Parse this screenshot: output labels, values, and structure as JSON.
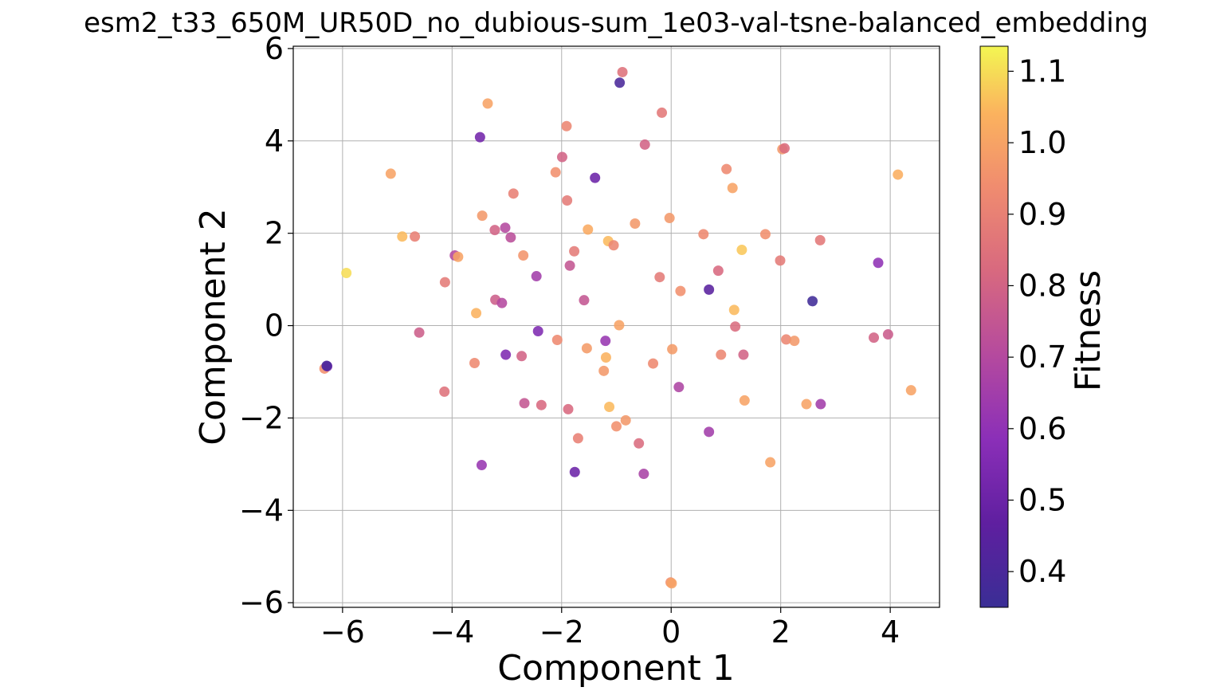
{
  "chart_data": {
    "type": "scatter",
    "title": "esm2_t33_650M_UR50D_no_dubious-sum_1e03-val-tsne-balanced_embedding",
    "xlabel": "Component 1",
    "ylabel": "Component 2",
    "xlim": [
      -6.9,
      4.9
    ],
    "ylim": [
      -6.1,
      6.05
    ],
    "xticks": [
      -6,
      -4,
      -2,
      0,
      2,
      4
    ],
    "yticks": [
      -6,
      -4,
      -2,
      0,
      2,
      4,
      6
    ],
    "xtick_labels": [
      "−6",
      "−4",
      "−2",
      "0",
      "2",
      "4"
    ],
    "ytick_labels": [
      "−6",
      "−4",
      "−2",
      "0",
      "2",
      "4",
      "6"
    ],
    "grid": true,
    "colormap": "plasma",
    "colorbar": {
      "label": "Fitness",
      "range": [
        0.35,
        1.135
      ],
      "ticks": [
        0.4,
        0.5,
        0.6,
        0.7,
        0.8,
        0.9,
        1.0,
        1.1
      ],
      "tick_labels": [
        "0.4",
        "0.5",
        "0.6",
        "0.7",
        "0.8",
        "0.9",
        "1.0",
        "1.1"
      ]
    },
    "points": [
      {
        "x": -0.94,
        "y": 5.26,
        "fitness": 0.4
      },
      {
        "x": -0.89,
        "y": 5.49,
        "fitness": 0.85
      },
      {
        "x": -3.35,
        "y": 4.81,
        "fitness": 1.0
      },
      {
        "x": -1.91,
        "y": 4.32,
        "fitness": 0.92
      },
      {
        "x": -0.17,
        "y": 4.61,
        "fitness": 0.87
      },
      {
        "x": -3.49,
        "y": 4.08,
        "fitness": 0.52
      },
      {
        "x": -0.48,
        "y": 3.92,
        "fitness": 0.8
      },
      {
        "x": 2.03,
        "y": 3.82,
        "fitness": 0.97
      },
      {
        "x": 2.07,
        "y": 3.84,
        "fitness": 0.83
      },
      {
        "x": -5.12,
        "y": 3.29,
        "fitness": 1.0
      },
      {
        "x": 4.14,
        "y": 3.27,
        "fitness": 1.03
      },
      {
        "x": -1.99,
        "y": 3.65,
        "fitness": 0.8
      },
      {
        "x": -2.11,
        "y": 3.32,
        "fitness": 0.95
      },
      {
        "x": -1.39,
        "y": 3.2,
        "fitness": 0.5
      },
      {
        "x": 1.01,
        "y": 3.39,
        "fitness": 0.93
      },
      {
        "x": 1.12,
        "y": 2.98,
        "fitness": 1.0
      },
      {
        "x": -2.88,
        "y": 2.86,
        "fitness": 0.9
      },
      {
        "x": -1.9,
        "y": 2.71,
        "fitness": 0.88
      },
      {
        "x": -3.45,
        "y": 2.38,
        "fitness": 0.97
      },
      {
        "x": -0.66,
        "y": 2.21,
        "fitness": 0.97
      },
      {
        "x": -0.03,
        "y": 2.33,
        "fitness": 0.97
      },
      {
        "x": -3.22,
        "y": 2.07,
        "fitness": 0.8
      },
      {
        "x": -3.03,
        "y": 2.12,
        "fitness": 0.7
      },
      {
        "x": -1.52,
        "y": 2.08,
        "fitness": 1.02
      },
      {
        "x": -2.93,
        "y": 1.91,
        "fitness": 0.72
      },
      {
        "x": -4.91,
        "y": 1.93,
        "fitness": 1.05
      },
      {
        "x": -4.68,
        "y": 1.93,
        "fitness": 0.9
      },
      {
        "x": 0.59,
        "y": 1.98,
        "fitness": 0.93
      },
      {
        "x": 1.72,
        "y": 1.98,
        "fitness": 0.95
      },
      {
        "x": 2.72,
        "y": 1.85,
        "fitness": 0.87
      },
      {
        "x": -1.15,
        "y": 1.83,
        "fitness": 1.05
      },
      {
        "x": -1.05,
        "y": 1.74,
        "fitness": 0.92
      },
      {
        "x": -3.95,
        "y": 1.52,
        "fitness": 0.7
      },
      {
        "x": -3.89,
        "y": 1.49,
        "fitness": 1.0
      },
      {
        "x": -2.7,
        "y": 1.52,
        "fitness": 0.96
      },
      {
        "x": -1.77,
        "y": 1.61,
        "fitness": 0.88
      },
      {
        "x": 1.29,
        "y": 1.64,
        "fitness": 1.07
      },
      {
        "x": -1.85,
        "y": 1.3,
        "fitness": 0.75
      },
      {
        "x": 1.99,
        "y": 1.41,
        "fitness": 0.88
      },
      {
        "x": 3.78,
        "y": 1.36,
        "fitness": 0.6
      },
      {
        "x": -5.93,
        "y": 1.14,
        "fitness": 1.1
      },
      {
        "x": -4.13,
        "y": 0.94,
        "fitness": 0.88
      },
      {
        "x": -2.46,
        "y": 1.07,
        "fitness": 0.65
      },
      {
        "x": -0.21,
        "y": 1.05,
        "fitness": 0.88
      },
      {
        "x": 0.86,
        "y": 1.19,
        "fitness": 0.82
      },
      {
        "x": 0.17,
        "y": 0.75,
        "fitness": 0.95
      },
      {
        "x": 0.69,
        "y": 0.78,
        "fitness": 0.45
      },
      {
        "x": -3.21,
        "y": 0.56,
        "fitness": 0.78
      },
      {
        "x": -3.09,
        "y": 0.49,
        "fitness": 0.7
      },
      {
        "x": -1.59,
        "y": 0.55,
        "fitness": 0.75
      },
      {
        "x": 2.58,
        "y": 0.53,
        "fitness": 0.37
      },
      {
        "x": 1.15,
        "y": 0.34,
        "fitness": 1.05
      },
      {
        "x": -3.56,
        "y": 0.27,
        "fitness": 1.04
      },
      {
        "x": -0.95,
        "y": 0.01,
        "fitness": 1.0
      },
      {
        "x": 1.17,
        "y": -0.02,
        "fitness": 0.83
      },
      {
        "x": -4.6,
        "y": -0.15,
        "fitness": 0.78
      },
      {
        "x": -2.43,
        "y": -0.12,
        "fitness": 0.55
      },
      {
        "x": 3.7,
        "y": -0.26,
        "fitness": 0.8
      },
      {
        "x": 3.96,
        "y": -0.19,
        "fitness": 0.77
      },
      {
        "x": -2.08,
        "y": -0.31,
        "fitness": 0.93
      },
      {
        "x": -1.2,
        "y": -0.33,
        "fitness": 0.62
      },
      {
        "x": 2.1,
        "y": -0.3,
        "fitness": 0.92
      },
      {
        "x": 2.25,
        "y": -0.33,
        "fitness": 0.97
      },
      {
        "x": -1.54,
        "y": -0.49,
        "fitness": 0.98
      },
      {
        "x": 0.02,
        "y": -0.51,
        "fitness": 0.98
      },
      {
        "x": -3.02,
        "y": -0.63,
        "fitness": 0.55
      },
      {
        "x": -2.73,
        "y": -0.66,
        "fitness": 0.8
      },
      {
        "x": 0.91,
        "y": -0.63,
        "fitness": 0.92
      },
      {
        "x": 1.32,
        "y": -0.63,
        "fitness": 0.8
      },
      {
        "x": -1.19,
        "y": -0.69,
        "fitness": 1.04
      },
      {
        "x": -6.33,
        "y": -0.93,
        "fitness": 0.95
      },
      {
        "x": -6.28,
        "y": -0.88,
        "fitness": 0.55
      },
      {
        "x": -6.29,
        "y": -0.87,
        "fitness": 0.4
      },
      {
        "x": -3.59,
        "y": -0.81,
        "fitness": 0.93
      },
      {
        "x": -0.33,
        "y": -0.82,
        "fitness": 0.93
      },
      {
        "x": -1.23,
        "y": -0.98,
        "fitness": 0.97
      },
      {
        "x": 0.14,
        "y": -1.33,
        "fitness": 0.68
      },
      {
        "x": 4.38,
        "y": -1.4,
        "fitness": 1.0
      },
      {
        "x": -4.14,
        "y": -1.43,
        "fitness": 0.85
      },
      {
        "x": 1.34,
        "y": -1.62,
        "fitness": 1.0
      },
      {
        "x": -2.68,
        "y": -1.68,
        "fitness": 0.75
      },
      {
        "x": -2.37,
        "y": -1.72,
        "fitness": 0.82
      },
      {
        "x": 2.47,
        "y": -1.7,
        "fitness": 1.0
      },
      {
        "x": 2.73,
        "y": -1.7,
        "fitness": 0.65
      },
      {
        "x": -1.13,
        "y": -1.76,
        "fitness": 1.05
      },
      {
        "x": -1.88,
        "y": -1.81,
        "fitness": 0.82
      },
      {
        "x": -0.83,
        "y": -2.05,
        "fitness": 0.97
      },
      {
        "x": -1.0,
        "y": -2.18,
        "fitness": 0.95
      },
      {
        "x": 0.69,
        "y": -2.3,
        "fitness": 0.65
      },
      {
        "x": -1.7,
        "y": -2.44,
        "fitness": 0.9
      },
      {
        "x": -0.59,
        "y": -2.55,
        "fitness": 0.83
      },
      {
        "x": 1.81,
        "y": -2.96,
        "fitness": 1.0
      },
      {
        "x": -3.46,
        "y": -3.02,
        "fitness": 0.62
      },
      {
        "x": -1.76,
        "y": -3.17,
        "fitness": 0.5
      },
      {
        "x": -0.5,
        "y": -3.21,
        "fitness": 0.67
      },
      {
        "x": -0.01,
        "y": -5.56,
        "fitness": 0.95
      },
      {
        "x": 0.01,
        "y": -5.58,
        "fitness": 1.0
      }
    ]
  }
}
